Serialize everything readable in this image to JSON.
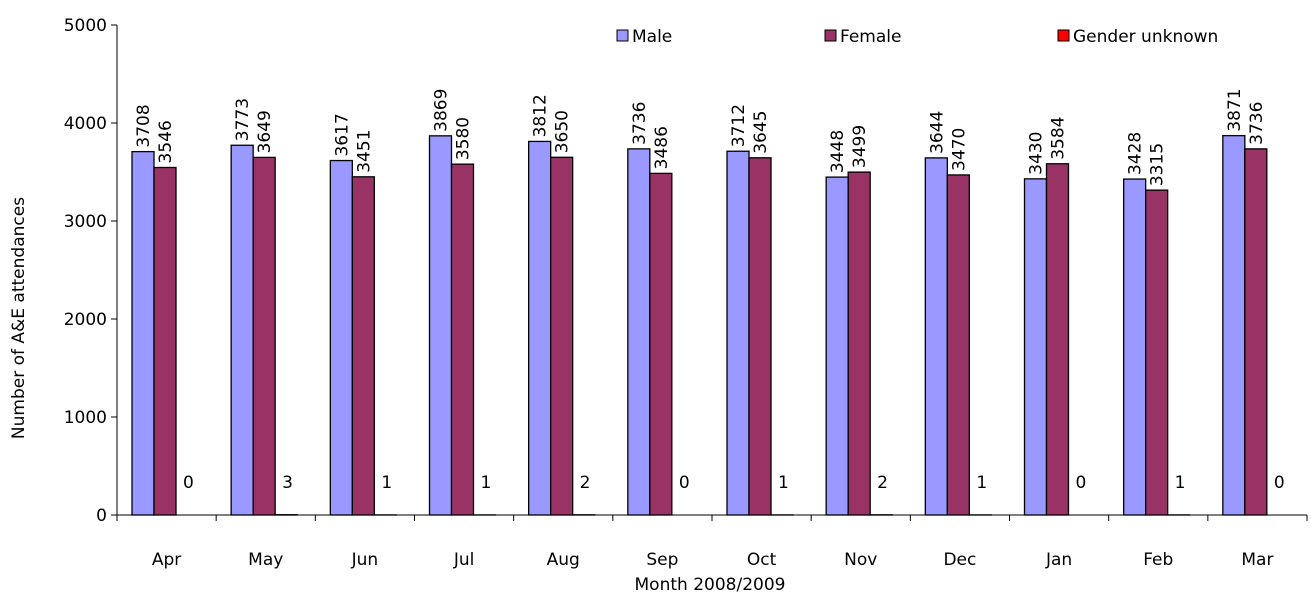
{
  "chart_data": {
    "type": "bar",
    "xlabel": "Month 2008/2009",
    "ylabel": "Number of A&E attendances",
    "ylim": [
      0,
      5000
    ],
    "yticks": [
      0,
      1000,
      2000,
      3000,
      4000,
      5000
    ],
    "categories": [
      "Apr",
      "May",
      "Jun",
      "Jul",
      "Aug",
      "Sep",
      "Oct",
      "Nov",
      "Dec",
      "Jan",
      "Feb",
      "Mar"
    ],
    "series": [
      {
        "name": "Male",
        "color": "#9999ff",
        "values": [
          3708,
          3773,
          3617,
          3869,
          3812,
          3736,
          3712,
          3448,
          3644,
          3430,
          3428,
          3871
        ]
      },
      {
        "name": "Female",
        "color": "#993366",
        "values": [
          3546,
          3649,
          3451,
          3580,
          3650,
          3486,
          3645,
          3499,
          3470,
          3584,
          3315,
          3736
        ]
      },
      {
        "name": "Gender unknown",
        "color": "#ff0000",
        "values": [
          0,
          3,
          1,
          1,
          2,
          0,
          1,
          2,
          1,
          0,
          1,
          0
        ]
      }
    ],
    "legend_position": "top-right",
    "grid": false
  }
}
